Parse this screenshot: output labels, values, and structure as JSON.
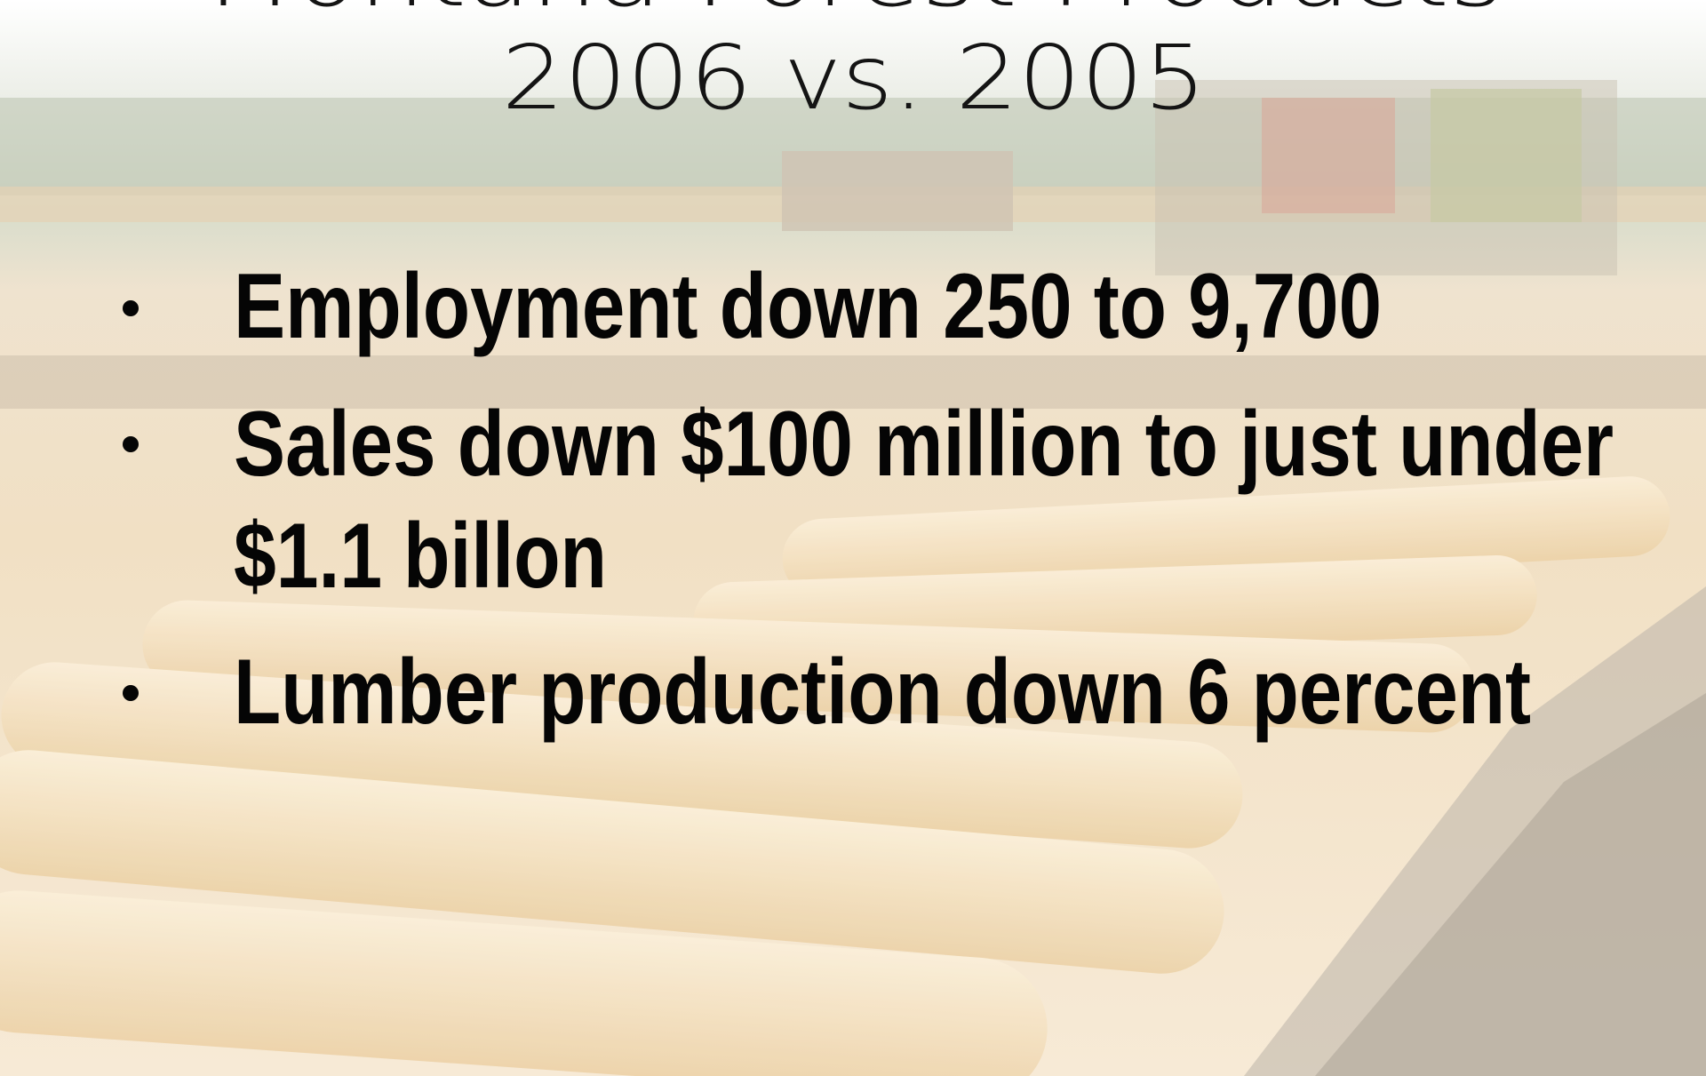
{
  "title": {
    "line1": "Montana Forest Products",
    "line2": "2006 vs. 2005"
  },
  "bullets": [
    {
      "lines": [
        "Employment down 250 to 9,700"
      ]
    },
    {
      "lines": [
        "Sales down $100 million to just under",
        "$1.1 billon"
      ]
    },
    {
      "lines": [
        "Lumber production down 6 percent"
      ]
    }
  ]
}
